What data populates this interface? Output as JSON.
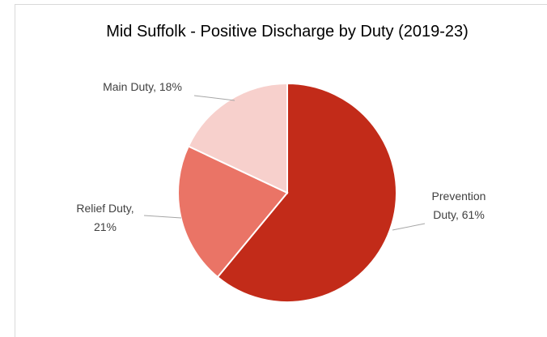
{
  "chart_data": {
    "type": "pie",
    "title": "Mid Suffolk - Positive Discharge by Duty (2019-23)",
    "values": [
      61,
      21,
      18
    ],
    "value_labels": [
      "Prevention Duty, 61%",
      "Relief Duty, 21%",
      "Main Duty, 18%"
    ],
    "colors": [
      "#c22b19",
      "#ea7466",
      "#f7d0cc"
    ]
  }
}
